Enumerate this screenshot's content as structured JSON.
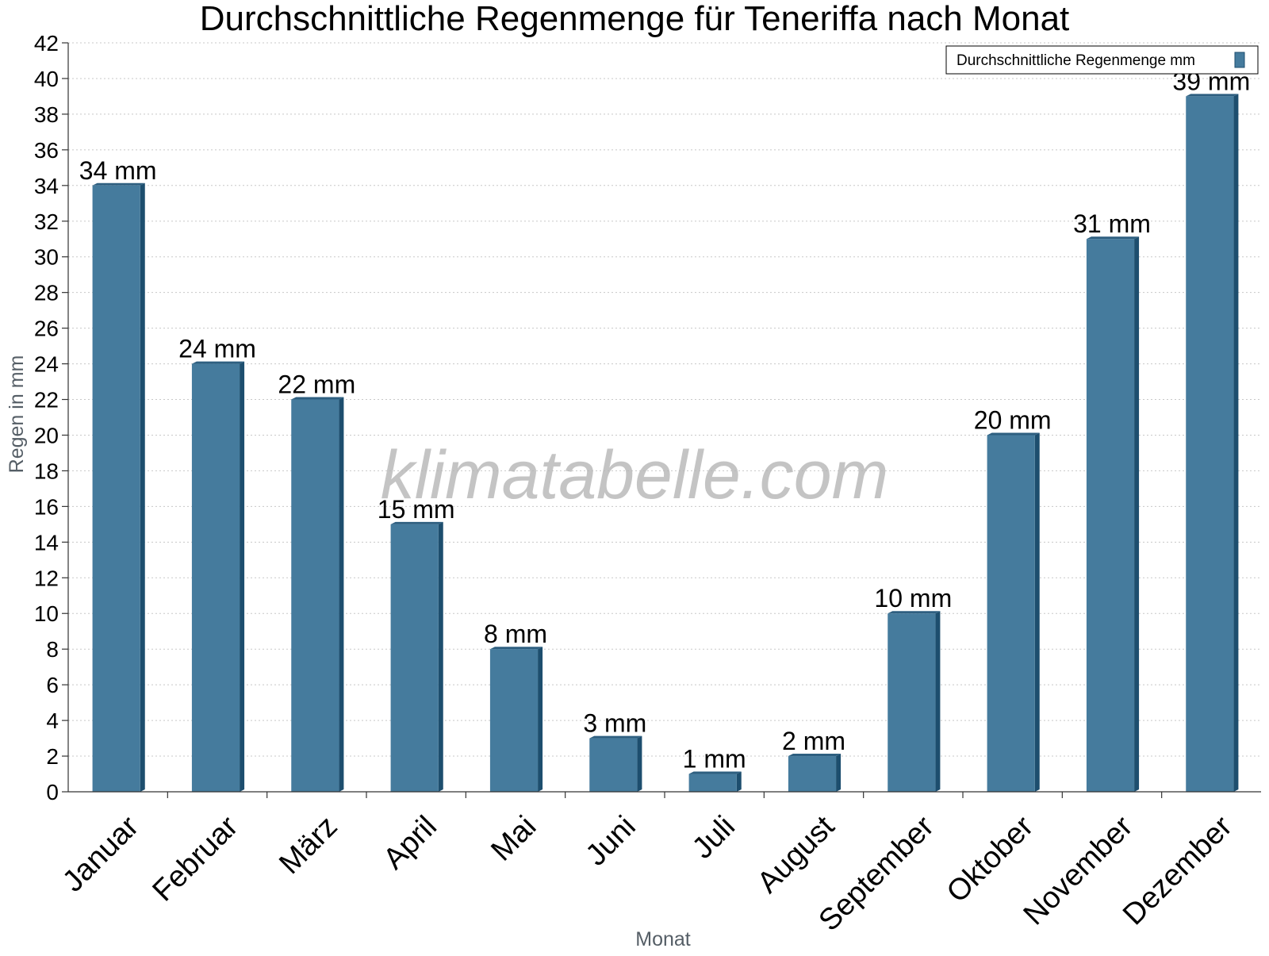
{
  "chart_data": {
    "type": "bar",
    "title": "Durchschnittliche Regenmenge für Teneriffa nach Monat",
    "xlabel": "Monat",
    "ylabel": "Regen in mm",
    "ylim": [
      0,
      42
    ],
    "y_ticks": [
      "0",
      "2",
      "4",
      "6",
      "8",
      "10",
      "12",
      "14",
      "16",
      "18",
      "20",
      "22",
      "24",
      "26",
      "28",
      "30",
      "32",
      "34",
      "36",
      "38",
      "40",
      "42"
    ],
    "categories": [
      "Januar",
      "Februar",
      "März",
      "April",
      "Mai",
      "Juni",
      "Juli",
      "August",
      "September",
      "Oktober",
      "November",
      "Dezember"
    ],
    "series": [
      {
        "name": "Durchschnittliche Regenmenge mm",
        "values": [
          34,
          24,
          22,
          15,
          8,
          3,
          1,
          2,
          10,
          20,
          31,
          39
        ],
        "labels": [
          "34 mm",
          "24 mm",
          "22 mm",
          "15 mm",
          "8 mm",
          "3 mm",
          "1 mm",
          "2 mm",
          "10 mm",
          "20 mm",
          "31 mm",
          "39 mm"
        ],
        "color": "#457b9d"
      }
    ],
    "legend_position": "top-right",
    "grid": true
  },
  "watermark": "klimatabelle.com",
  "colors": {
    "bar": "#457b9d",
    "bar_side": "#1d4e6e",
    "bar_top": "#2e5f80"
  }
}
